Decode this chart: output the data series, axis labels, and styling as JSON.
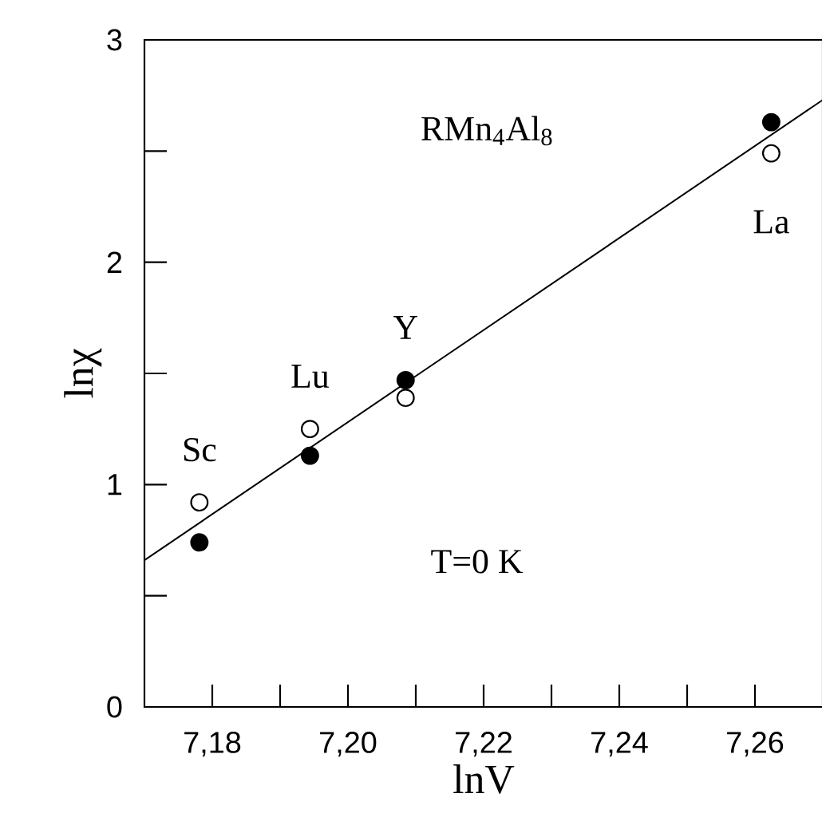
{
  "chart_data": {
    "type": "scatter",
    "xlabel": "lnV",
    "ylabel": "lnχ",
    "xlim": [
      7.17,
      7.27
    ],
    "ylim": [
      0,
      3
    ],
    "xticks": [
      {
        "value": 7.18,
        "label": "7,18"
      },
      {
        "value": 7.19,
        "label": null
      },
      {
        "value": 7.2,
        "label": "7,20"
      },
      {
        "value": 7.21,
        "label": null
      },
      {
        "value": 7.22,
        "label": "7,22"
      },
      {
        "value": 7.23,
        "label": null
      },
      {
        "value": 7.24,
        "label": "7,24"
      },
      {
        "value": 7.25,
        "label": null
      },
      {
        "value": 7.26,
        "label": "7,26"
      }
    ],
    "yticks": [
      0,
      {
        "value": 0.5,
        "label": null
      },
      1,
      {
        "value": 1.5,
        "label": null
      },
      2,
      {
        "value": 2.5,
        "label": null
      },
      3
    ],
    "grid": false,
    "series": [
      {
        "color": "#000000",
        "marker": "circle",
        "x": [
          7.1781,
          7.1944,
          7.2085,
          7.2624
        ],
        "values": [
          0.74,
          1.13,
          1.47,
          2.63
        ]
      },
      {
        "color": "#ffffff",
        "marker": "circle",
        "x": [
          7.1781,
          7.1944,
          7.2085,
          7.2624
        ],
        "values": [
          0.92,
          1.25,
          1.39,
          2.49
        ]
      },
      {
        "type": "line",
        "color": "#000000",
        "x": [
          7.17,
          7.27
        ],
        "values": [
          0.66,
          2.73
        ]
      }
    ],
    "annotations": [
      {
        "text": "Sc",
        "x": 7.1781,
        "y": 0.92
      },
      {
        "text": "Lu",
        "x": 7.1944,
        "y": 1.25
      },
      {
        "text": "Y",
        "x": 7.2085,
        "y": 1.47
      },
      {
        "text": "La",
        "x": 7.2624,
        "y": 2.49
      },
      "RMn$_{4}$Al$_{8}$",
      "T=0 K"
    ]
  }
}
